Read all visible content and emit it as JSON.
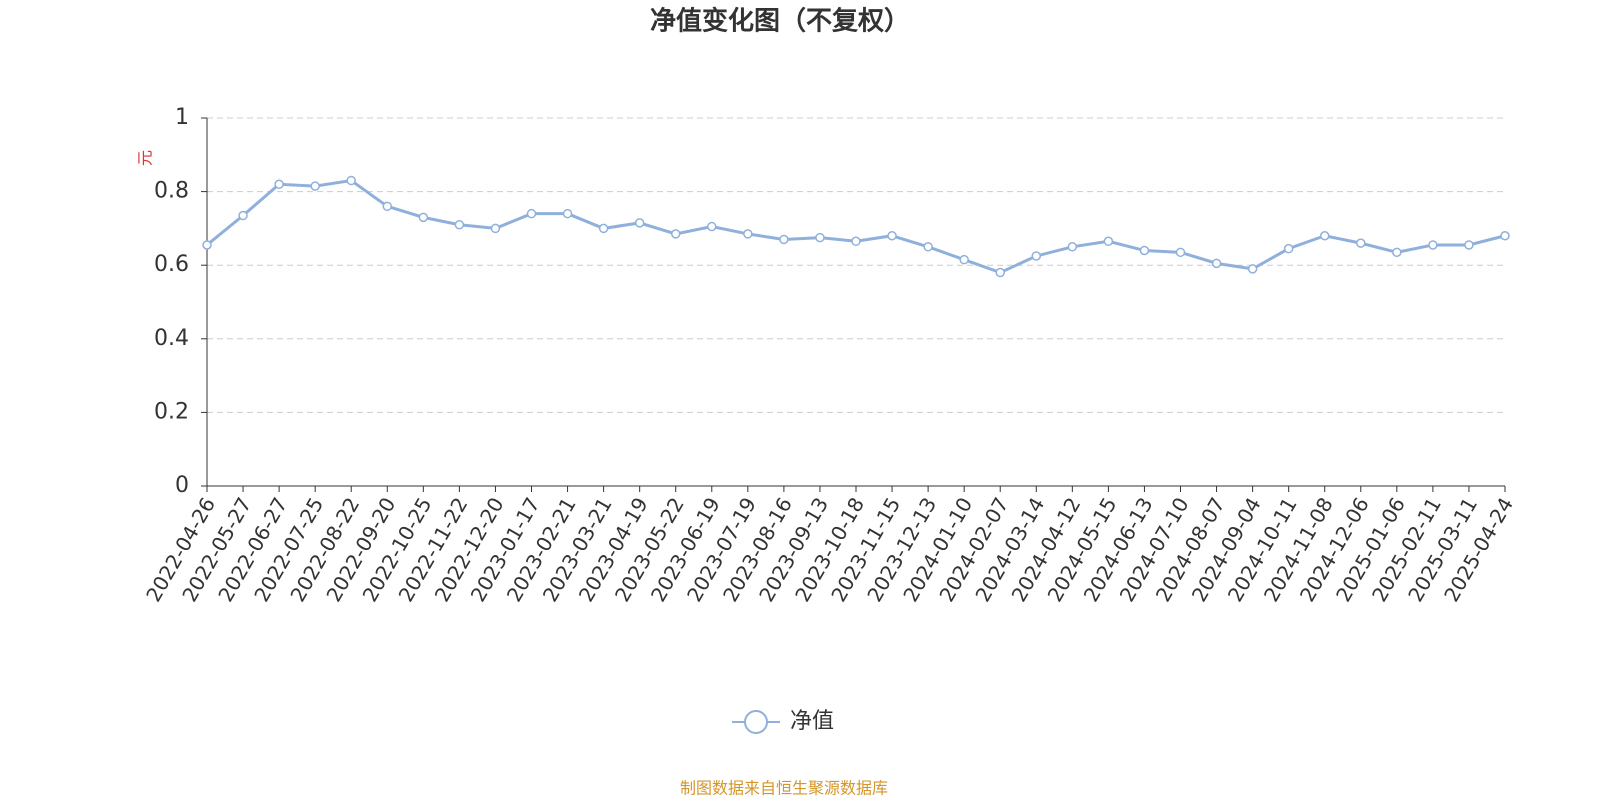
{
  "chart_data": {
    "type": "line",
    "title": "净值变化图（不复权）",
    "y_label": "元",
    "source": "制图数据来自恒生聚源数据库",
    "categories": [
      "2022-04-26",
      "2022-05-27",
      "2022-06-27",
      "2022-07-25",
      "2022-08-22",
      "2022-09-20",
      "2022-10-25",
      "2022-11-22",
      "2022-12-20",
      "2023-01-17",
      "2023-02-21",
      "2023-03-21",
      "2023-04-19",
      "2023-05-22",
      "2023-06-19",
      "2023-07-19",
      "2023-08-16",
      "2023-09-13",
      "2023-10-18",
      "2023-11-15",
      "2023-12-13",
      "2024-01-10",
      "2024-02-07",
      "2024-03-14",
      "2024-04-12",
      "2024-05-15",
      "2024-06-13",
      "2024-07-10",
      "2024-08-07",
      "2024-09-04",
      "2024-10-11",
      "2024-11-08",
      "2024-12-06",
      "2025-01-06",
      "2025-02-11",
      "2025-03-11",
      "2025-04-24"
    ],
    "series": [
      {
        "name": "净值",
        "color": "#8fb0dc",
        "values": [
          0.655,
          0.735,
          0.82,
          0.815,
          0.83,
          0.76,
          0.73,
          0.71,
          0.7,
          0.74,
          0.74,
          0.7,
          0.715,
          0.685,
          0.705,
          0.685,
          0.67,
          0.675,
          0.665,
          0.68,
          0.65,
          0.615,
          0.58,
          0.625,
          0.65,
          0.665,
          0.64,
          0.635,
          0.605,
          0.59,
          0.645,
          0.68,
          0.66,
          0.635,
          0.655,
          0.655,
          0.68
        ]
      }
    ],
    "ylim": [
      0,
      1
    ],
    "yticks": [
      0,
      0.2,
      0.4,
      0.6,
      0.8,
      1
    ],
    "grid": true
  }
}
